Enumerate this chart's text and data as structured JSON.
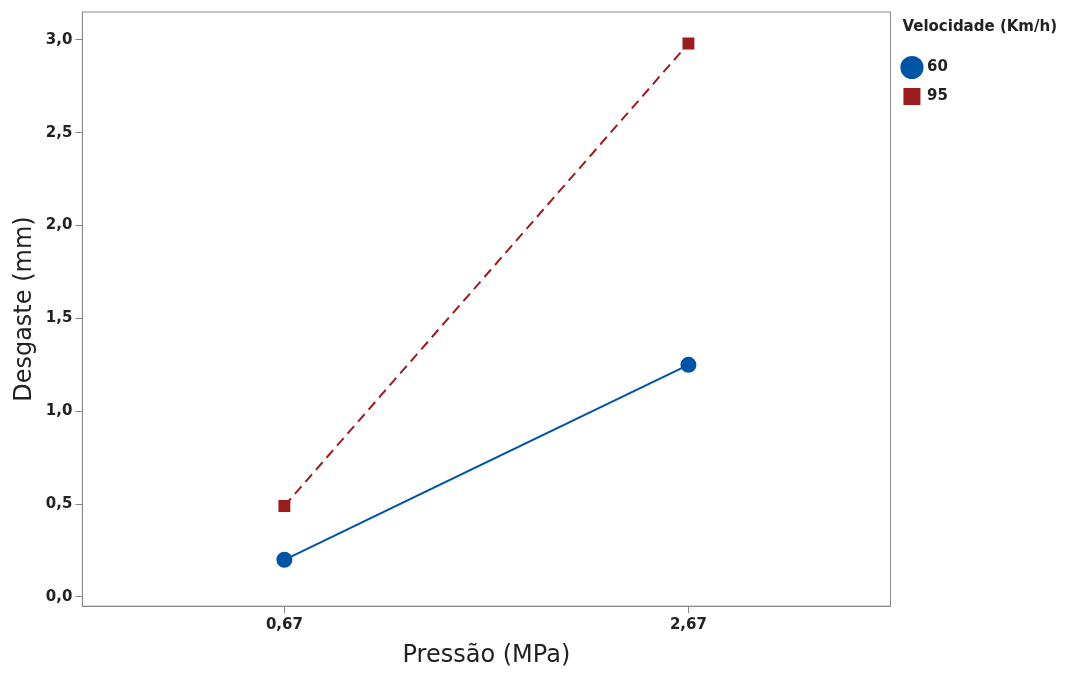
{
  "chart_data": {
    "type": "line",
    "xlabel": "Pressão (MPa)",
    "ylabel": "Desgaste (mm)",
    "legend_title": "Velocidade (Km/h)",
    "legend": "top right",
    "grid": false,
    "categories": [
      "0,67",
      "2,67"
    ],
    "ylim": [
      -0.05,
      3.15
    ],
    "yticks": [
      {
        "value": 0,
        "label": "0,0"
      },
      {
        "value": 0.5,
        "label": "0,5"
      },
      {
        "value": 1,
        "label": "1,0"
      },
      {
        "value": 1.5,
        "label": "1,5"
      },
      {
        "value": 2,
        "label": "2,0"
      },
      {
        "value": 2.5,
        "label": "2,5"
      },
      {
        "value": 3,
        "label": "3,0"
      }
    ],
    "series": [
      {
        "name": "60",
        "color": "#0054a6",
        "values": [
          0.2,
          1.25
        ],
        "marker": "circle",
        "line_style": "solid"
      },
      {
        "name": "95",
        "color": "#9b1c1c",
        "values": [
          0.49,
          2.98
        ],
        "marker": "square",
        "line_style": "dashed"
      }
    ]
  }
}
